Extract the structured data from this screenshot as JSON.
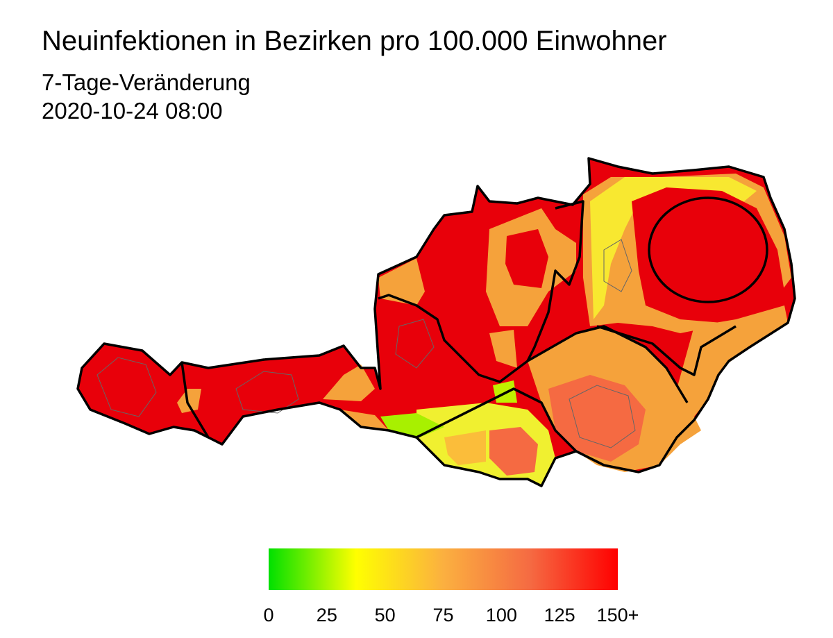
{
  "header": {
    "title": "Neuinfektionen in Bezirken pro 100.000 Einwohner",
    "subtitle": [
      "7-Tage-Veränderung",
      "2020-10-24 08:00"
    ]
  },
  "legend": {
    "range": [
      0,
      150
    ],
    "ticks": [
      0,
      25,
      50,
      75,
      100,
      125,
      {
        "value": 150,
        "label": "150+"
      }
    ],
    "colors": [
      "#00e000",
      "#ffff00",
      "#fbb040",
      "#f56a42",
      "#ff0000"
    ]
  }
}
